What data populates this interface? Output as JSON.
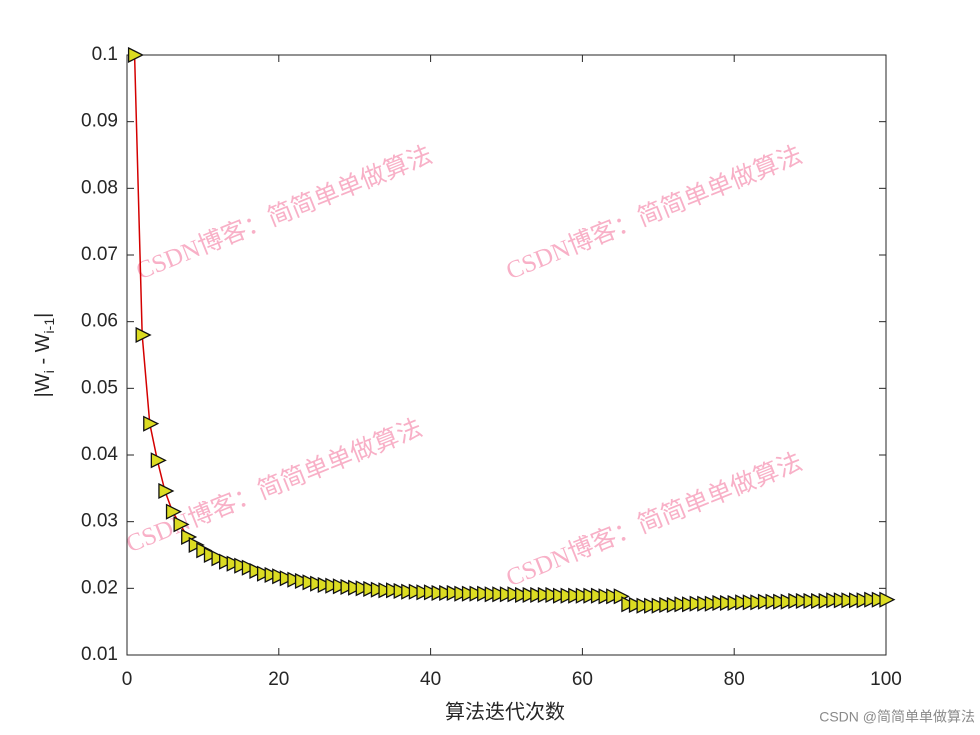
{
  "chart_data": {
    "type": "line",
    "xlabel": "算法迭代次数",
    "ylabel": [
      "|W",
      "i",
      " - W",
      "i-1",
      "|"
    ],
    "watermark": "CSDN博客：简简单单做算法",
    "footer": "CSDN @简简单单做算法",
    "line_color": "#d40000",
    "marker_color": "#dcdc22",
    "x": [
      1,
      2,
      3,
      4,
      5,
      6,
      7,
      8,
      9,
      10,
      11,
      12,
      13,
      14,
      15,
      16,
      17,
      18,
      19,
      20,
      21,
      22,
      23,
      24,
      25,
      26,
      27,
      28,
      29,
      30,
      31,
      32,
      33,
      34,
      35,
      36,
      37,
      38,
      39,
      40,
      41,
      42,
      43,
      44,
      45,
      46,
      47,
      48,
      49,
      50,
      51,
      52,
      53,
      54,
      55,
      56,
      57,
      58,
      59,
      60,
      61,
      62,
      63,
      64,
      65,
      66,
      67,
      68,
      69,
      70,
      71,
      72,
      73,
      74,
      75,
      76,
      77,
      78,
      79,
      80,
      81,
      82,
      83,
      84,
      85,
      86,
      87,
      88,
      89,
      90,
      91,
      92,
      93,
      94,
      95,
      96,
      97,
      98,
      99,
      100
    ],
    "values": [
      0.1,
      0.058,
      0.0447,
      0.0392,
      0.0346,
      0.0315,
      0.0296,
      0.0277,
      0.0265,
      0.0257,
      0.025,
      0.0245,
      0.024,
      0.0237,
      0.0234,
      0.0231,
      0.0226,
      0.0222,
      0.022,
      0.0218,
      0.0215,
      0.0213,
      0.0211,
      0.0209,
      0.0207,
      0.0205,
      0.0204,
      0.0203,
      0.0202,
      0.0201,
      0.02,
      0.0199,
      0.0198,
      0.0197,
      0.0197,
      0.0196,
      0.0195,
      0.0195,
      0.0194,
      0.0194,
      0.0193,
      0.0193,
      0.0193,
      0.0192,
      0.0192,
      0.0192,
      0.0192,
      0.0191,
      0.0191,
      0.0191,
      0.0191,
      0.019,
      0.019,
      0.019,
      0.019,
      0.019,
      0.0189,
      0.0189,
      0.0189,
      0.0189,
      0.0189,
      0.0189,
      0.0188,
      0.0188,
      0.0188,
      0.0176,
      0.0175,
      0.0174,
      0.0174,
      0.0174,
      0.0175,
      0.0175,
      0.0176,
      0.0176,
      0.0177,
      0.0177,
      0.0177,
      0.0178,
      0.0178,
      0.0178,
      0.0179,
      0.0179,
      0.0179,
      0.018,
      0.018,
      0.018,
      0.018,
      0.0181,
      0.0181,
      0.0181,
      0.0181,
      0.0181,
      0.0182,
      0.0182,
      0.0182,
      0.0182,
      0.0182,
      0.0183,
      0.0183,
      0.0183
    ],
    "xlim": [
      0,
      100
    ],
    "xticks": [
      0,
      20,
      40,
      60,
      80,
      100
    ],
    "ylim": [
      0.01,
      0.1
    ],
    "yticks": [
      0.01,
      0.02,
      0.03,
      0.04,
      0.05,
      0.06,
      0.07,
      0.08,
      0.09,
      0.1
    ]
  }
}
